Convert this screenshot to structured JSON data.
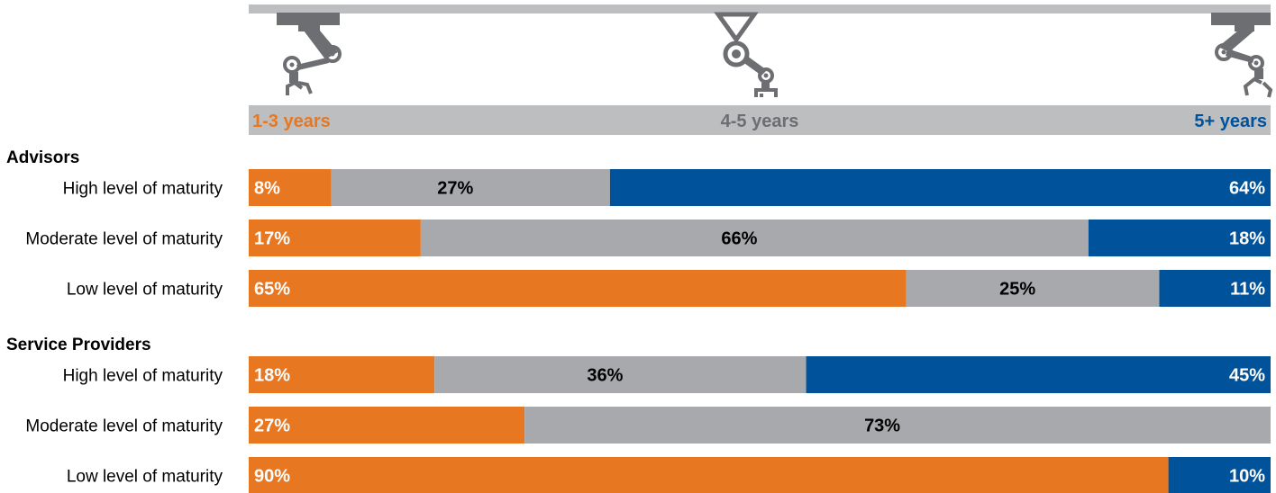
{
  "chart_data": {
    "type": "bar",
    "stacked": true,
    "orientation": "horizontal",
    "title": "",
    "xlabel": "",
    "ylabel": "",
    "xlim": [
      0,
      100
    ],
    "grid": false,
    "categories_header": [
      {
        "label": "1-3 years",
        "color": "#e87722"
      },
      {
        "label": "4-5 years",
        "color": "#6d6e71"
      },
      {
        "label": "5+ years",
        "color": "#00529b"
      }
    ],
    "colors": {
      "segments": [
        "#e87722",
        "#a7a9ac",
        "#00529b"
      ],
      "labels_on_segment": [
        "#ffffff",
        "#000000",
        "#ffffff"
      ],
      "header_bar": "#bcbec0"
    },
    "groups": [
      {
        "name": "Advisors",
        "rows": [
          {
            "label": "High level of maturity",
            "values": [
              8,
              27,
              64
            ],
            "labels": [
              "8%",
              "27%",
              "64%"
            ]
          },
          {
            "label": "Moderate level of maturity",
            "values": [
              17,
              66,
              18
            ],
            "labels": [
              "17%",
              "66%",
              "18%"
            ]
          },
          {
            "label": "Low level of maturity",
            "values": [
              65,
              25,
              11
            ],
            "labels": [
              "65%",
              "25%",
              "11%"
            ]
          }
        ]
      },
      {
        "name": "Service Providers",
        "rows": [
          {
            "label": "High level of maturity",
            "values": [
              18,
              36,
              45
            ],
            "labels": [
              "18%",
              "36%",
              "45%"
            ]
          },
          {
            "label": "Moderate level of maturity",
            "values": [
              27,
              73,
              0
            ],
            "labels": [
              "27%",
              "73%",
              ""
            ]
          },
          {
            "label": "Low level of maturity",
            "values": [
              90,
              0,
              10
            ],
            "labels": [
              "90%",
              "",
              "10%"
            ]
          }
        ]
      }
    ],
    "icons": [
      "robot-arm-icon",
      "robot-arm-icon",
      "robot-arm-icon"
    ]
  }
}
